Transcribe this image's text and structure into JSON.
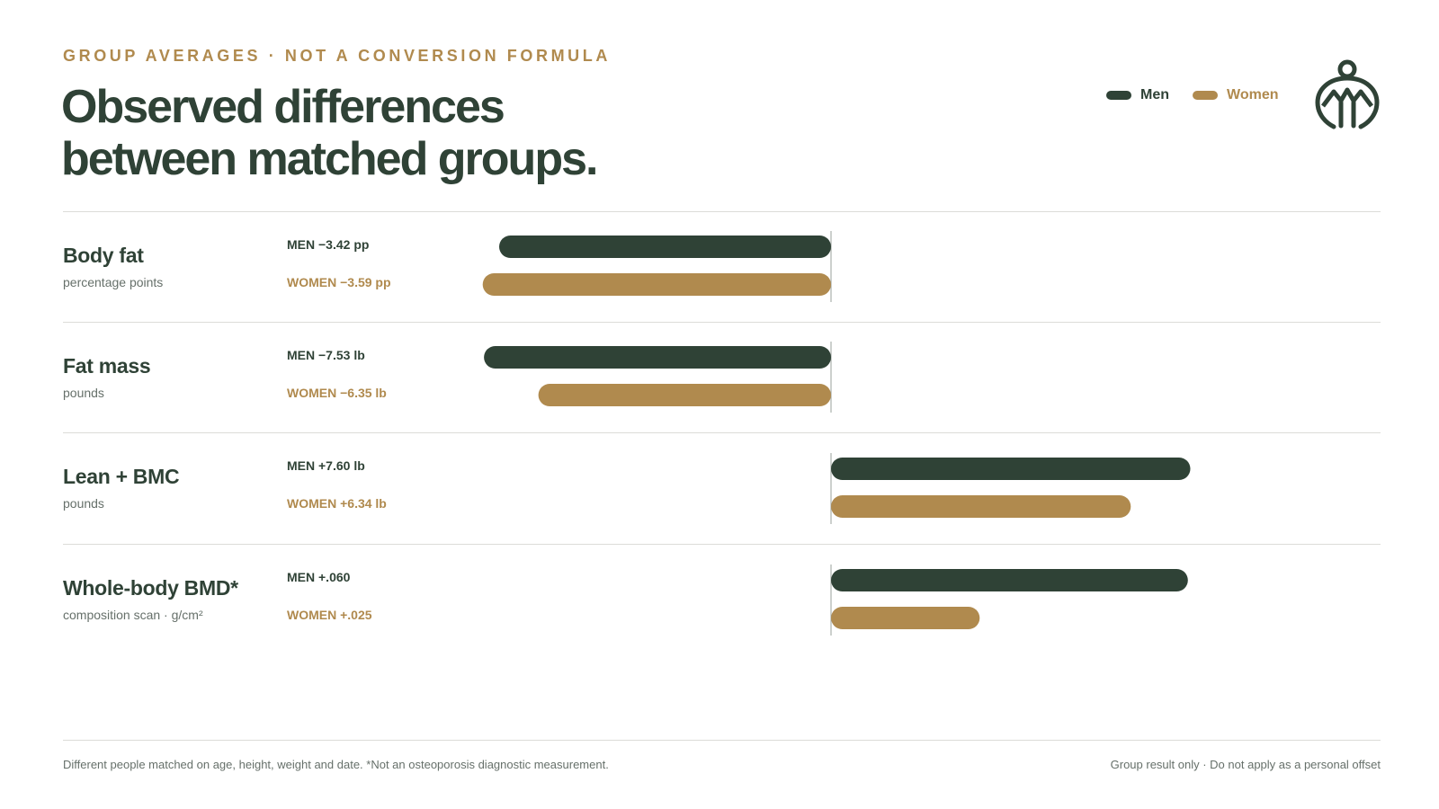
{
  "header": {
    "eyebrow": "GROUP AVERAGES · NOT A CONVERSION FORMULA",
    "title_line1": "Observed differences",
    "title_line2": "between matched groups."
  },
  "legend": [
    {
      "name": "Men",
      "color": "#2f4236"
    },
    {
      "name": "Women",
      "color": "#b08a4e"
    }
  ],
  "logo": {
    "icon": "mountain-figure-logo-icon"
  },
  "chart_data": {
    "type": "bar",
    "orientation": "horizontal-diverging",
    "baseline": 0,
    "categories": [
      {
        "name": "Body fat",
        "unit": "percentage points",
        "men": -3.42,
        "women": -3.59,
        "men_label": "MEN −3.42 pp",
        "women_label": "WOMEN −3.59 pp",
        "scale_max": 3.8
      },
      {
        "name": "Fat mass",
        "unit": "pounds",
        "men": -7.53,
        "women": -6.35,
        "men_label": "MEN −7.53 lb",
        "women_label": "WOMEN −6.35 lb",
        "scale_max": 8
      },
      {
        "name": "Lean + BMC",
        "unit": "pounds",
        "men": 7.6,
        "women": 6.34,
        "men_label": "MEN +7.60 lb",
        "women_label": "WOMEN +6.34 lb",
        "scale_max": 7.8
      },
      {
        "name": "Whole-body BMD*",
        "unit": "composition scan · g/cm²",
        "men": 0.06,
        "women": 0.025,
        "men_label": "MEN +.060",
        "women_label": "WOMEN +.025",
        "scale_max": 0.062
      }
    ],
    "series": [
      {
        "name": "Men",
        "color": "#2f4236"
      },
      {
        "name": "Women",
        "color": "#b08a4e"
      }
    ]
  },
  "footer": {
    "note": "Different people matched on age, height, weight and date. *Not an osteoporosis diagnostic measurement.",
    "disclaimer": "Group result only · Do not apply as a personal offset"
  }
}
